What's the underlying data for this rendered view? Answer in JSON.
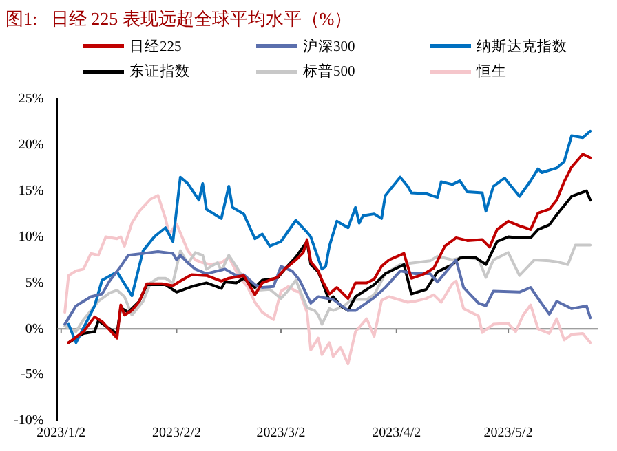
{
  "chart_data": {
    "type": "line",
    "title": "图1:   日经 225 表现远超全球平均水平（%）",
    "legend": "top",
    "marker": "none",
    "line_style": "solid",
    "xlim": [
      "2023-01-01",
      "2023-05-26"
    ],
    "xticks": [
      {
        "value": "2023-01-02",
        "label": "2023/1/2"
      },
      {
        "value": "2023-02-02",
        "label": "2023/2/2"
      },
      {
        "value": "2023-03-02",
        "label": "2023/3/2"
      },
      {
        "value": "2023-04-02",
        "label": "2023/4/2"
      },
      {
        "value": "2023-05-02",
        "label": "2023/5/2"
      }
    ],
    "ylim": [
      -10,
      25
    ],
    "yticks": [
      {
        "value": -10,
        "label": "-10%"
      },
      {
        "value": -5,
        "label": "-5%"
      },
      {
        "value": 0,
        "label": "0%"
      },
      {
        "value": 5,
        "label": "5%"
      },
      {
        "value": 10,
        "label": "10%"
      },
      {
        "value": 15,
        "label": "15%"
      },
      {
        "value": 20,
        "label": "20%"
      },
      {
        "value": 25,
        "label": "25%"
      }
    ],
    "ref_lines": [
      {
        "axis": "y",
        "value": 0,
        "color": "#808080"
      }
    ],
    "series": [
      {
        "name": "日经225",
        "color": "#c00000",
        "x": [
          "2023-01-04",
          "2023-01-08",
          "2023-01-11",
          "2023-01-13",
          "2023-01-17",
          "2023-01-18",
          "2023-01-19",
          "2023-01-21",
          "2023-01-23",
          "2023-01-25",
          "2023-01-29",
          "2023-02-01",
          "2023-02-03",
          "2023-02-06",
          "2023-02-10",
          "2023-02-14",
          "2023-02-16",
          "2023-02-20",
          "2023-02-23",
          "2023-02-25",
          "2023-03-01",
          "2023-03-03",
          "2023-03-06",
          "2023-03-08",
          "2023-03-09",
          "2023-03-10",
          "2023-03-12",
          "2023-03-13",
          "2023-03-15",
          "2023-03-17",
          "2023-03-20",
          "2023-03-22",
          "2023-03-25",
          "2023-03-27",
          "2023-03-29",
          "2023-03-31",
          "2023-04-04",
          "2023-04-06",
          "2023-04-09",
          "2023-04-12",
          "2023-04-15",
          "2023-04-18",
          "2023-04-21",
          "2023-04-25",
          "2023-04-27",
          "2023-04-29",
          "2023-05-02",
          "2023-05-05",
          "2023-05-08",
          "2023-05-10",
          "2023-05-13",
          "2023-05-15",
          "2023-05-17",
          "2023-05-19",
          "2023-05-22",
          "2023-05-24"
        ],
        "values": [
          -1.5,
          -0.3,
          1.3,
          0.8,
          -1.0,
          2.6,
          1.5,
          2,
          3,
          4.9,
          4.9,
          4.7,
          5.2,
          5.9,
          5.8,
          5.2,
          5.5,
          5.8,
          3.7,
          5,
          5.6,
          6.5,
          7.5,
          8.3,
          9.7,
          7.3,
          6.3,
          5.3,
          3.8,
          4.5,
          3.3,
          5,
          5,
          5.4,
          6.8,
          7.5,
          8.2,
          5.5,
          5.9,
          6.6,
          9.0,
          9.9,
          9.6,
          9.7,
          8.9,
          10.8,
          11.7,
          11.2,
          10.8,
          12.6,
          13,
          14,
          16,
          17.6,
          19,
          18.6
        ]
      },
      {
        "name": "沪深300",
        "color": "#5b6fad",
        "x": [
          "2023-01-03",
          "2023-01-06",
          "2023-01-10",
          "2023-01-13",
          "2023-01-15",
          "2023-01-18",
          "2023-01-20",
          "2023-01-24",
          "2023-01-28",
          "2023-02-01",
          "2023-02-02",
          "2023-02-03",
          "2023-02-05",
          "2023-02-07",
          "2023-02-10",
          "2023-02-15",
          "2023-02-18",
          "2023-02-20",
          "2023-02-23",
          "2023-02-25",
          "2023-02-28",
          "2023-03-02",
          "2023-03-05",
          "2023-03-07",
          "2023-03-10",
          "2023-03-12",
          "2023-03-16",
          "2023-03-20",
          "2023-03-22",
          "2023-03-27",
          "2023-03-30",
          "2023-04-03",
          "2023-04-07",
          "2023-04-11",
          "2023-04-13",
          "2023-04-18",
          "2023-04-20",
          "2023-04-24",
          "2023-04-26",
          "2023-04-28",
          "2023-05-05",
          "2023-05-08",
          "2023-05-10",
          "2023-05-13",
          "2023-05-15",
          "2023-05-19",
          "2023-05-23",
          "2023-05-24"
        ],
        "values": [
          0.5,
          2.5,
          3.5,
          3.8,
          5.2,
          6.8,
          8,
          8.2,
          8.4,
          8.2,
          7.5,
          8,
          7.2,
          6.5,
          6.0,
          6.5,
          5.8,
          5.9,
          4.8,
          4.5,
          4.6,
          6.8,
          6.3,
          5.3,
          2.8,
          3.5,
          3.2,
          2,
          2,
          3.4,
          4.5,
          6.3,
          6,
          6,
          5.1,
          7.5,
          4.5,
          2.8,
          2.5,
          4.1,
          4.0,
          4.5,
          3.3,
          1.6,
          3.0,
          2.2,
          2.5,
          1.2
        ]
      },
      {
        "name": "纳斯达克指数",
        "color": "#0070c0",
        "x": [
          "2023-01-04",
          "2023-01-06",
          "2023-01-11",
          "2023-01-13",
          "2023-01-17",
          "2023-01-21",
          "2023-01-24",
          "2023-01-27",
          "2023-01-30",
          "2023-02-01",
          "2023-02-03",
          "2023-02-05",
          "2023-02-08",
          "2023-02-09",
          "2023-02-10",
          "2023-02-14",
          "2023-02-16",
          "2023-02-17",
          "2023-02-20",
          "2023-02-23",
          "2023-02-25",
          "2023-02-27",
          "2023-03-02",
          "2023-03-06",
          "2023-03-09",
          "2023-03-10",
          "2023-03-13",
          "2023-03-14",
          "2023-03-15",
          "2023-03-17",
          "2023-03-20",
          "2023-03-22",
          "2023-03-23",
          "2023-03-24",
          "2023-03-27",
          "2023-03-29",
          "2023-03-30",
          "2023-04-03",
          "2023-04-05",
          "2023-04-06",
          "2023-04-10",
          "2023-04-13",
          "2023-04-14",
          "2023-04-17",
          "2023-04-19",
          "2023-04-21",
          "2023-04-25",
          "2023-04-26",
          "2023-04-28",
          "2023-05-01",
          "2023-05-05",
          "2023-05-08",
          "2023-05-10",
          "2023-05-11",
          "2023-05-15",
          "2023-05-17",
          "2023-05-19",
          "2023-05-22",
          "2023-05-24"
        ],
        "values": [
          0.5,
          -1.5,
          2.5,
          5.3,
          6.2,
          3.6,
          8.5,
          10,
          11,
          9.5,
          16.5,
          15.8,
          14,
          15.8,
          13,
          12,
          15.5,
          13.2,
          12.5,
          9.8,
          10.3,
          9,
          9.5,
          11.8,
          10.5,
          10,
          6.5,
          6.8,
          9,
          11.7,
          11,
          13.2,
          11.5,
          12.3,
          12.5,
          12,
          14.5,
          16.5,
          15.5,
          14.8,
          14.7,
          14.3,
          16,
          15.7,
          16.1,
          14.9,
          14.8,
          12.8,
          15.5,
          16.4,
          14.4,
          16.1,
          17.4,
          17,
          17.5,
          18.2,
          21,
          20.8,
          21.5
        ]
      },
      {
        "name": "东证指数",
        "color": "#000000",
        "x": [
          "2023-01-04",
          "2023-01-08",
          "2023-01-11",
          "2023-01-12",
          "2023-01-15",
          "2023-01-17",
          "2023-01-18",
          "2023-01-20",
          "2023-01-23",
          "2023-01-25",
          "2023-01-30",
          "2023-02-02",
          "2023-02-06",
          "2023-02-10",
          "2023-02-14",
          "2023-02-15",
          "2023-02-18",
          "2023-02-20",
          "2023-02-23",
          "2023-02-25",
          "2023-03-01",
          "2023-03-03",
          "2023-03-06",
          "2023-03-09",
          "2023-03-10",
          "2023-03-12",
          "2023-03-13",
          "2023-03-15",
          "2023-03-16",
          "2023-03-18",
          "2023-03-20",
          "2023-03-22",
          "2023-03-27",
          "2023-03-30",
          "2023-04-04",
          "2023-04-06",
          "2023-04-10",
          "2023-04-13",
          "2023-04-17",
          "2023-04-19",
          "2023-04-23",
          "2023-04-26",
          "2023-04-29",
          "2023-05-02",
          "2023-05-05",
          "2023-05-08",
          "2023-05-10",
          "2023-05-13",
          "2023-05-15",
          "2023-05-19",
          "2023-05-23",
          "2023-05-24"
        ],
        "values": [
          -1.5,
          -0.5,
          -0.3,
          0.9,
          0,
          -0.5,
          2.3,
          1.8,
          3,
          4.8,
          4.8,
          4.0,
          4.6,
          5.0,
          4.4,
          5.1,
          5.0,
          5.5,
          4.5,
          5.3,
          5.5,
          6.5,
          7.8,
          9.5,
          7,
          6.2,
          5.2,
          3,
          3.5,
          2.5,
          2,
          3.5,
          4.8,
          6,
          7,
          3.8,
          4.3,
          6.2,
          7,
          7.7,
          7.8,
          7,
          9.5,
          10,
          9.9,
          9.9,
          10.8,
          11.3,
          12.4,
          14.4,
          15,
          14
        ]
      },
      {
        "name": "标普500",
        "color": "#c8c8c8",
        "x": [
          "2023-01-03",
          "2023-01-06",
          "2023-01-08",
          "2023-01-12",
          "2023-01-15",
          "2023-01-17",
          "2023-01-19",
          "2023-01-21",
          "2023-01-24",
          "2023-01-26",
          "2023-01-28",
          "2023-01-30",
          "2023-02-01",
          "2023-02-03",
          "2023-02-05",
          "2023-02-07",
          "2023-02-09",
          "2023-02-10",
          "2023-02-13",
          "2023-02-14",
          "2023-02-16",
          "2023-02-18",
          "2023-02-20",
          "2023-02-24",
          "2023-02-27",
          "2023-03-02",
          "2023-03-04",
          "2023-03-06",
          "2023-03-09",
          "2023-03-11",
          "2023-03-12",
          "2023-03-13",
          "2023-03-15",
          "2023-03-16",
          "2023-03-19",
          "2023-03-21",
          "2023-03-25",
          "2023-03-27",
          "2023-03-30",
          "2023-04-03",
          "2023-04-07",
          "2023-04-11",
          "2023-04-13",
          "2023-04-17",
          "2023-04-20",
          "2023-04-24",
          "2023-04-26",
          "2023-04-28",
          "2023-05-02",
          "2023-05-05",
          "2023-05-09",
          "2023-05-13",
          "2023-05-15",
          "2023-05-18",
          "2023-05-20",
          "2023-05-24"
        ],
        "values": [
          0.3,
          -0.3,
          1,
          3,
          3.9,
          4.2,
          3.5,
          1.5,
          3.0,
          5,
          5.5,
          5.5,
          5,
          8.5,
          7.1,
          8.3,
          8,
          6.5,
          7.2,
          6.3,
          8,
          6.8,
          5.4,
          4.2,
          4.3,
          3.3,
          4.2,
          5.3,
          2.3,
          2,
          1.5,
          0.5,
          2.2,
          2,
          2.5,
          3.2,
          3.2,
          3.7,
          6,
          7,
          7.2,
          7.4,
          7.9,
          7.5,
          7.8,
          7.6,
          5.6,
          7.5,
          8.3,
          5.8,
          7.5,
          7.4,
          7.3,
          7.0,
          9.1,
          9.1
        ]
      },
      {
        "name": "恒生",
        "color": "#f5c6cb",
        "x": [
          "2023-01-03",
          "2023-01-04",
          "2023-01-06",
          "2023-01-08",
          "2023-01-10",
          "2023-01-12",
          "2023-01-14",
          "2023-01-17",
          "2023-01-18",
          "2023-01-19",
          "2023-01-21",
          "2023-01-23",
          "2023-01-26",
          "2023-01-28",
          "2023-01-30",
          "2023-01-31",
          "2023-02-02",
          "2023-02-05",
          "2023-02-07",
          "2023-02-09",
          "2023-02-11",
          "2023-02-14",
          "2023-02-16",
          "2023-02-19",
          "2023-02-21",
          "2023-02-23",
          "2023-02-25",
          "2023-02-28",
          "2023-03-02",
          "2023-03-04",
          "2023-03-06",
          "2023-03-07",
          "2023-03-09",
          "2023-03-10",
          "2023-03-12",
          "2023-03-13",
          "2023-03-15",
          "2023-03-16",
          "2023-03-18",
          "2023-03-20",
          "2023-03-22",
          "2023-03-25",
          "2023-03-27",
          "2023-03-29",
          "2023-03-31",
          "2023-04-05",
          "2023-04-07",
          "2023-04-10",
          "2023-04-12",
          "2023-04-14",
          "2023-04-17",
          "2023-04-18",
          "2023-04-20",
          "2023-04-24",
          "2023-04-25",
          "2023-04-28",
          "2023-05-02",
          "2023-05-04",
          "2023-05-06",
          "2023-05-08",
          "2023-05-10",
          "2023-05-13",
          "2023-05-15",
          "2023-05-17",
          "2023-05-19",
          "2023-05-22",
          "2023-05-24"
        ],
        "values": [
          1.8,
          5.8,
          6.3,
          6.5,
          8.2,
          8,
          10,
          9.8,
          10,
          9,
          11.5,
          12.8,
          14.1,
          14.5,
          12,
          10.3,
          11.4,
          8.5,
          7.5,
          7.2,
          7.0,
          7.2,
          7.8,
          5.5,
          4.6,
          2.9,
          1.8,
          1.0,
          4.1,
          4.6,
          4.1,
          4,
          1.8,
          -2.3,
          -1.0,
          -2.8,
          -1.5,
          -3,
          -2,
          -3.8,
          -0.3,
          1.1,
          -0.8,
          3.1,
          3.5,
          2.9,
          3,
          3.3,
          3.7,
          2.9,
          4.9,
          5.2,
          2.2,
          1.4,
          -0.4,
          0.5,
          0.6,
          -0.3,
          1.5,
          2.6,
          0,
          -0.5,
          1.1,
          -1.2,
          -0.6,
          -0.5,
          -1.5
        ]
      }
    ]
  }
}
